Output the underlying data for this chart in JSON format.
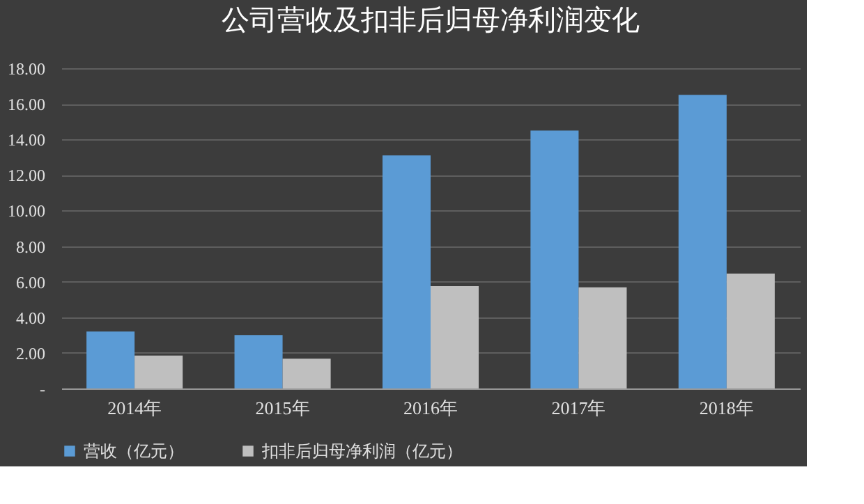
{
  "chart_data": {
    "type": "bar",
    "title": "公司营收及扣非后归母净利润变化",
    "categories": [
      "2014年",
      "2015年",
      "2016年",
      "2017年",
      "2018年"
    ],
    "series": [
      {
        "name": "营收（亿元）",
        "color": "#5b9bd5",
        "values": [
          3.2,
          3.0,
          13.1,
          14.5,
          16.5
        ]
      },
      {
        "name": "扣非后归母净利润（亿元）",
        "color": "#bfbfbf",
        "values": [
          1.85,
          1.67,
          5.75,
          5.68,
          6.46
        ]
      }
    ],
    "ylim": [
      0,
      18
    ],
    "yticks": [
      {
        "value": 0,
        "label": "-"
      },
      {
        "value": 2,
        "label": "2.00"
      },
      {
        "value": 4,
        "label": "4.00"
      },
      {
        "value": 6,
        "label": "6.00"
      },
      {
        "value": 8,
        "label": "8.00"
      },
      {
        "value": 10,
        "label": "10.00"
      },
      {
        "value": 12,
        "label": "12.00"
      },
      {
        "value": 14,
        "label": "14.00"
      },
      {
        "value": 16,
        "label": "16.00"
      },
      {
        "value": 18,
        "label": "18.00"
      }
    ],
    "grid": "y",
    "legend": "bottom"
  }
}
